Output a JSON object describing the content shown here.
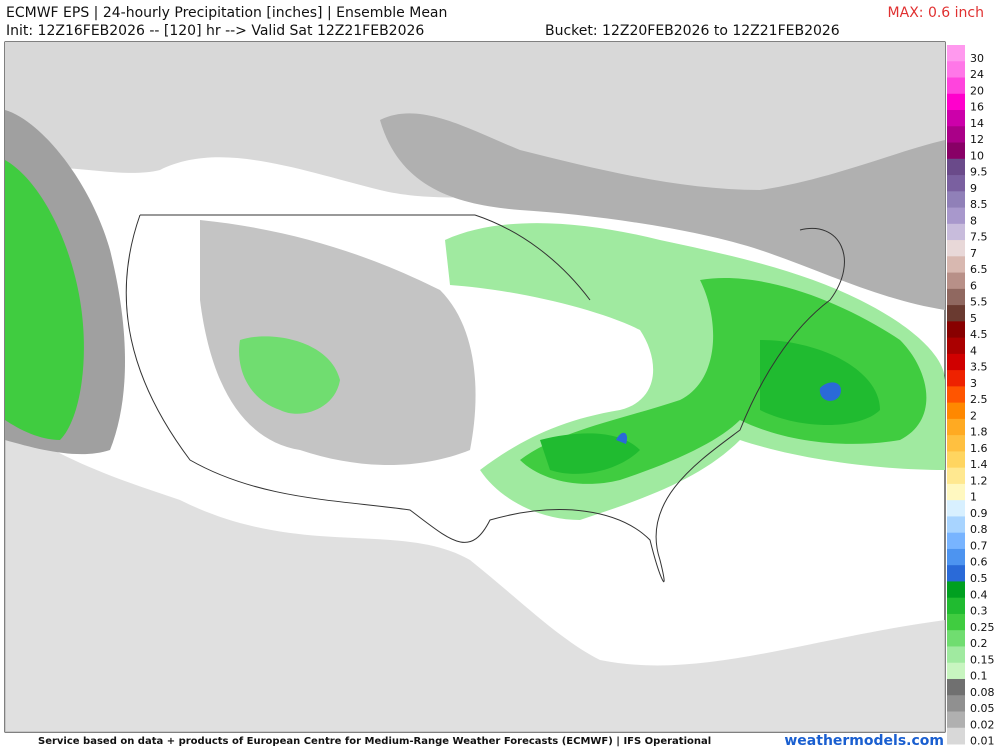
{
  "header": {
    "title": "ECMWF EPS | 24-hourly Precipitation [inches] | Ensemble Mean",
    "init": "Init: 12Z16FEB2026 -- [120] hr --> Valid Sat 12Z21FEB2026",
    "bucket": "Bucket: 12Z20FEB2026 to 12Z21FEB2026",
    "max": "MAX: 0.6 inch"
  },
  "colorbar": [
    {
      "label": "30",
      "color": "#ff99ee"
    },
    {
      "label": "24",
      "color": "#ff77e8"
    },
    {
      "label": "20",
      "color": "#ff44dd"
    },
    {
      "label": "16",
      "color": "#ff00cc"
    },
    {
      "label": "14",
      "color": "#cc00aa"
    },
    {
      "label": "12",
      "color": "#aa0088"
    },
    {
      "label": "10",
      "color": "#880066"
    },
    {
      "label": "9.5",
      "color": "#6a4a8a"
    },
    {
      "label": "9",
      "color": "#7a60a0"
    },
    {
      "label": "8.5",
      "color": "#9080b8"
    },
    {
      "label": "8",
      "color": "#a898cc"
    },
    {
      "label": "7.5",
      "color": "#c8bcdc"
    },
    {
      "label": "7",
      "color": "#e8d8d8"
    },
    {
      "label": "6.5",
      "color": "#d8b8b0"
    },
    {
      "label": "6",
      "color": "#b89088"
    },
    {
      "label": "5.5",
      "color": "#906860"
    },
    {
      "label": "5",
      "color": "#6a3a30"
    },
    {
      "label": "4.5",
      "color": "#880000"
    },
    {
      "label": "4",
      "color": "#aa0000"
    },
    {
      "label": "3.5",
      "color": "#d00000"
    },
    {
      "label": "3",
      "color": "#ee2200"
    },
    {
      "label": "2.5",
      "color": "#ff5500"
    },
    {
      "label": "2",
      "color": "#ff8800"
    },
    {
      "label": "1.8",
      "color": "#ffaa22"
    },
    {
      "label": "1.6",
      "color": "#ffc040"
    },
    {
      "label": "1.4",
      "color": "#ffd560"
    },
    {
      "label": "1.2",
      "color": "#ffe890"
    },
    {
      "label": "1",
      "color": "#fff8c0"
    },
    {
      "label": "0.9",
      "color": "#d8f0ff"
    },
    {
      "label": "0.8",
      "color": "#a8d4ff"
    },
    {
      "label": "0.7",
      "color": "#78b4ff"
    },
    {
      "label": "0.6",
      "color": "#4d94f0"
    },
    {
      "label": "0.5",
      "color": "#2a6ad8"
    },
    {
      "label": "0.4",
      "color": "#00a020"
    },
    {
      "label": "0.3",
      "color": "#20bb30"
    },
    {
      "label": "0.25",
      "color": "#40cc40"
    },
    {
      "label": "0.2",
      "color": "#70dd70"
    },
    {
      "label": "0.15",
      "color": "#a0eaa0"
    },
    {
      "label": "0.1",
      "color": "#c8f5c0"
    },
    {
      "label": "0.08",
      "color": "#707070"
    },
    {
      "label": "0.05",
      "color": "#909090"
    },
    {
      "label": "0.02",
      "color": "#b0b0b0"
    },
    {
      "label": "0.01",
      "color": "#d8d8d8"
    }
  ],
  "footer": {
    "credit": "Service based on data + products of European Centre for Medium-Range Weather Forecasts (ECMWF) | IFS Operational",
    "site": "weathermodels.com"
  }
}
